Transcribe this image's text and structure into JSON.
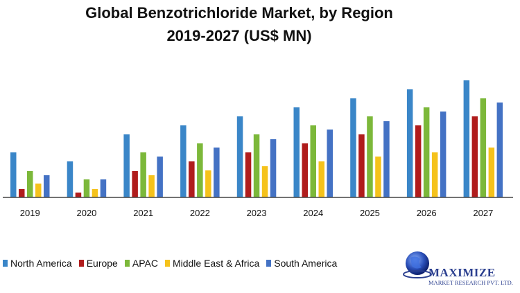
{
  "header": {
    "title_line1": "Global  Benzotrichloride  Market,  by Region",
    "title_line2": "2019-2027 (US$ MN)"
  },
  "logo": {
    "name": "MAXIMIZE",
    "subtitle": "MARKET RESEARCH PVT. LTD."
  },
  "colors": {
    "North America": "#3a86c8",
    "Europe": "#b01c1c",
    "APAC": "#7cb83a",
    "Middle East & Africa": "#f5c21b",
    "South America": "#4472c4"
  },
  "chart_data": {
    "type": "bar",
    "title": "Global  Benzotrichloride  Market,  by Region 2019-2027 (US$ MN)",
    "categories": [
      "2019",
      "2020",
      "2021",
      "2022",
      "2023",
      "2024",
      "2025",
      "2026",
      "2027"
    ],
    "ylim": [
      0,
      170
    ],
    "grid": false,
    "legend_position": "bottom",
    "series": [
      {
        "name": "North America",
        "values": [
          65,
          52,
          91,
          104,
          117,
          130,
          143,
          156,
          169
        ]
      },
      {
        "name": "Europe",
        "values": [
          12,
          7,
          38,
          52,
          65,
          78,
          91,
          104,
          117
        ]
      },
      {
        "name": "APAC",
        "values": [
          38,
          26,
          65,
          78,
          91,
          104,
          117,
          130,
          143
        ]
      },
      {
        "name": "Middle East & Africa",
        "values": [
          20,
          12,
          32,
          39,
          45,
          52,
          59,
          65,
          72
        ]
      },
      {
        "name": "South America",
        "values": [
          32,
          26,
          59,
          72,
          84,
          98,
          110,
          124,
          137
        ]
      }
    ]
  }
}
